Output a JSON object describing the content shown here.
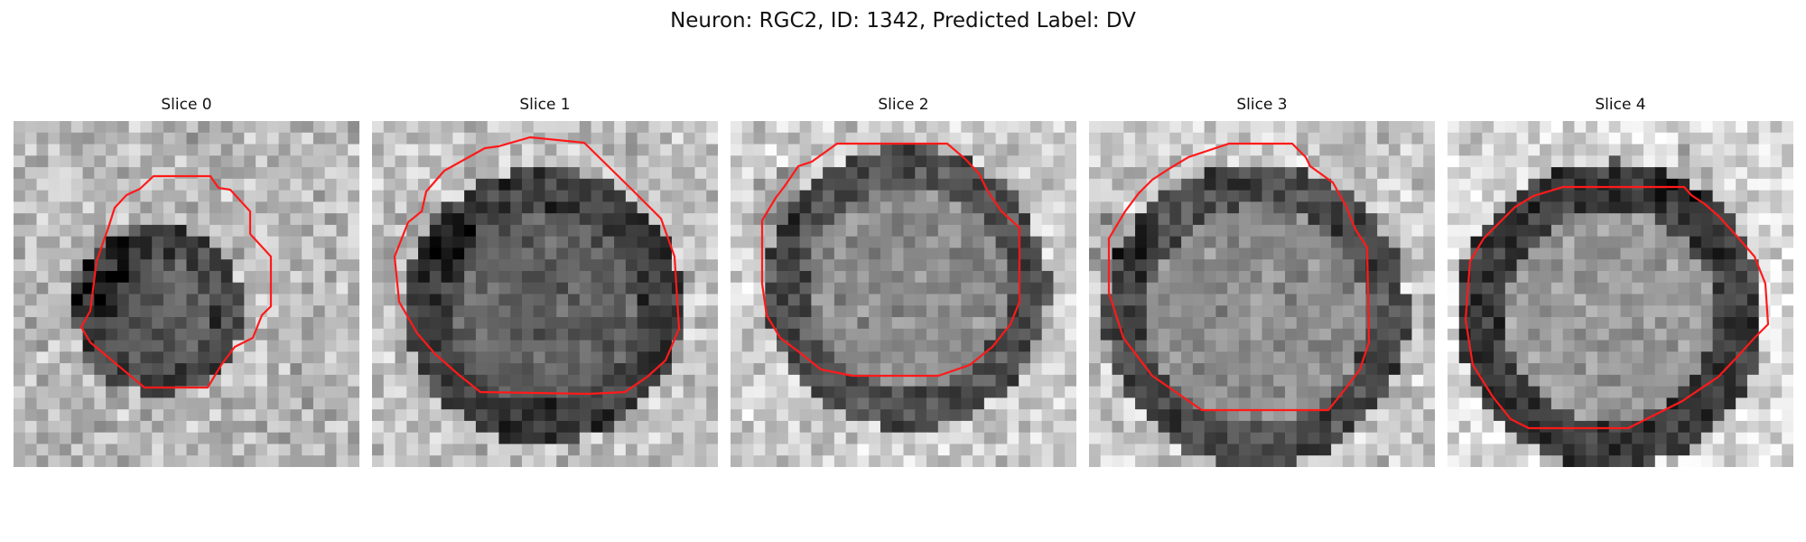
{
  "figure": {
    "title": "Neuron: RGC2, ID: 1342, Predicted Label: DV"
  },
  "panels": [
    {
      "title": "Slice 0"
    },
    {
      "title": "Slice 1"
    },
    {
      "title": "Slice 2"
    },
    {
      "title": "Slice 3"
    },
    {
      "title": "Slice 4"
    }
  ],
  "colors": {
    "contour": "#ff1a1a",
    "background": "#ffffff"
  }
}
